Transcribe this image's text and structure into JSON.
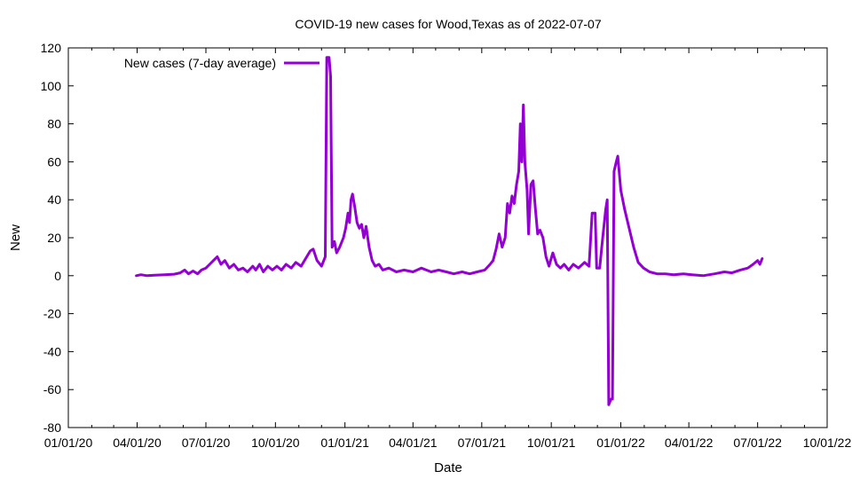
{
  "chart_data": {
    "type": "line",
    "title": "COVID-19 new cases for Wood,Texas as of 2022-07-07",
    "xlabel": "Date",
    "ylabel": "New",
    "xlim": [
      "2020-01-01",
      "2022-10-01"
    ],
    "ylim": [
      -80,
      120
    ],
    "x_ticks": [
      {
        "date": "2020-01-01",
        "label": "01/01/20"
      },
      {
        "date": "2020-04-01",
        "label": "04/01/20"
      },
      {
        "date": "2020-07-01",
        "label": "07/01/20"
      },
      {
        "date": "2020-10-01",
        "label": "10/01/20"
      },
      {
        "date": "2021-01-01",
        "label": "01/01/21"
      },
      {
        "date": "2021-04-01",
        "label": "04/01/21"
      },
      {
        "date": "2021-07-01",
        "label": "07/01/21"
      },
      {
        "date": "2021-10-01",
        "label": "10/01/21"
      },
      {
        "date": "2022-01-01",
        "label": "01/01/22"
      },
      {
        "date": "2022-04-01",
        "label": "04/01/22"
      },
      {
        "date": "2022-07-01",
        "label": "07/01/22"
      },
      {
        "date": "2022-10-01",
        "label": "10/01/22"
      }
    ],
    "y_ticks": [
      -80,
      -60,
      -40,
      -20,
      0,
      20,
      40,
      60,
      80,
      100,
      120
    ],
    "legend_position": "top-left",
    "grid": false,
    "series": [
      {
        "name": "New cases (7-day average)",
        "color": "#9400d3",
        "points": [
          [
            "2020-03-31",
            0
          ],
          [
            "2020-04-06",
            0.5
          ],
          [
            "2020-04-14",
            0
          ],
          [
            "2020-04-24",
            0.3
          ],
          [
            "2020-05-07",
            0.5
          ],
          [
            "2020-05-20",
            0.8
          ],
          [
            "2020-05-28",
            1.5
          ],
          [
            "2020-06-03",
            3
          ],
          [
            "2020-06-08",
            1
          ],
          [
            "2020-06-14",
            2.5
          ],
          [
            "2020-06-20",
            1
          ],
          [
            "2020-06-25",
            3
          ],
          [
            "2020-07-01",
            4
          ],
          [
            "2020-07-06",
            6
          ],
          [
            "2020-07-11",
            8
          ],
          [
            "2020-07-16",
            10
          ],
          [
            "2020-07-21",
            6
          ],
          [
            "2020-07-26",
            8
          ],
          [
            "2020-08-01",
            4
          ],
          [
            "2020-08-07",
            6
          ],
          [
            "2020-08-13",
            3
          ],
          [
            "2020-08-19",
            4
          ],
          [
            "2020-08-25",
            2
          ],
          [
            "2020-09-01",
            5
          ],
          [
            "2020-09-05",
            3
          ],
          [
            "2020-09-10",
            6
          ],
          [
            "2020-09-15",
            2
          ],
          [
            "2020-09-21",
            5
          ],
          [
            "2020-09-27",
            3
          ],
          [
            "2020-10-03",
            5
          ],
          [
            "2020-10-09",
            3
          ],
          [
            "2020-10-15",
            6
          ],
          [
            "2020-10-22",
            4
          ],
          [
            "2020-10-28",
            7
          ],
          [
            "2020-11-04",
            5
          ],
          [
            "2020-11-10",
            9
          ],
          [
            "2020-11-16",
            13
          ],
          [
            "2020-11-20",
            14
          ],
          [
            "2020-11-25",
            8
          ],
          [
            "2020-12-01",
            5
          ],
          [
            "2020-12-06",
            10
          ],
          [
            "2020-12-08",
            115
          ],
          [
            "2020-12-11",
            115
          ],
          [
            "2020-12-13",
            105
          ],
          [
            "2020-12-15",
            15
          ],
          [
            "2020-12-18",
            18
          ],
          [
            "2020-12-21",
            12
          ],
          [
            "2020-12-25",
            15
          ],
          [
            "2020-12-30",
            20
          ],
          [
            "2021-01-02",
            25
          ],
          [
            "2021-01-05",
            33
          ],
          [
            "2021-01-07",
            28
          ],
          [
            "2021-01-09",
            40
          ],
          [
            "2021-01-11",
            43
          ],
          [
            "2021-01-14",
            36
          ],
          [
            "2021-01-17",
            28
          ],
          [
            "2021-01-20",
            25
          ],
          [
            "2021-01-23",
            27
          ],
          [
            "2021-01-26",
            20
          ],
          [
            "2021-01-29",
            26
          ],
          [
            "2021-02-02",
            15
          ],
          [
            "2021-02-06",
            8
          ],
          [
            "2021-02-10",
            5
          ],
          [
            "2021-02-15",
            6
          ],
          [
            "2021-02-20",
            3
          ],
          [
            "2021-02-28",
            4
          ],
          [
            "2021-03-10",
            2
          ],
          [
            "2021-03-20",
            3
          ],
          [
            "2021-04-01",
            2
          ],
          [
            "2021-04-12",
            4
          ],
          [
            "2021-04-25",
            2
          ],
          [
            "2021-05-05",
            3
          ],
          [
            "2021-05-15",
            2
          ],
          [
            "2021-05-25",
            1
          ],
          [
            "2021-06-05",
            2
          ],
          [
            "2021-06-15",
            1
          ],
          [
            "2021-06-25",
            2
          ],
          [
            "2021-07-05",
            3
          ],
          [
            "2021-07-12",
            6
          ],
          [
            "2021-07-16",
            8
          ],
          [
            "2021-07-20",
            14
          ],
          [
            "2021-07-24",
            22
          ],
          [
            "2021-07-28",
            15
          ],
          [
            "2021-08-01",
            20
          ],
          [
            "2021-08-04",
            38
          ],
          [
            "2021-08-07",
            33
          ],
          [
            "2021-08-10",
            42
          ],
          [
            "2021-08-13",
            38
          ],
          [
            "2021-08-16",
            48
          ],
          [
            "2021-08-19",
            55
          ],
          [
            "2021-08-21",
            80
          ],
          [
            "2021-08-23",
            60
          ],
          [
            "2021-08-25",
            90
          ],
          [
            "2021-08-27",
            60
          ],
          [
            "2021-08-30",
            45
          ],
          [
            "2021-09-01",
            22
          ],
          [
            "2021-09-04",
            48
          ],
          [
            "2021-09-07",
            50
          ],
          [
            "2021-09-10",
            35
          ],
          [
            "2021-09-13",
            22
          ],
          [
            "2021-09-16",
            24
          ],
          [
            "2021-09-20",
            20
          ],
          [
            "2021-09-24",
            10
          ],
          [
            "2021-09-28",
            5
          ],
          [
            "2021-10-03",
            12
          ],
          [
            "2021-10-08",
            6
          ],
          [
            "2021-10-13",
            4
          ],
          [
            "2021-10-18",
            6
          ],
          [
            "2021-10-24",
            3
          ],
          [
            "2021-10-30",
            6
          ],
          [
            "2021-11-06",
            4
          ],
          [
            "2021-11-14",
            7
          ],
          [
            "2021-11-20",
            5
          ],
          [
            "2021-11-24",
            33
          ],
          [
            "2021-11-28",
            33
          ],
          [
            "2021-11-30",
            4
          ],
          [
            "2021-12-04",
            4
          ],
          [
            "2021-12-08",
            20
          ],
          [
            "2021-12-12",
            35
          ],
          [
            "2021-12-14",
            40
          ],
          [
            "2021-12-16",
            -68
          ],
          [
            "2021-12-19",
            -65
          ],
          [
            "2021-12-21",
            -65
          ],
          [
            "2021-12-23",
            55
          ],
          [
            "2021-12-26",
            60
          ],
          [
            "2021-12-28",
            63
          ],
          [
            "2022-01-01",
            45
          ],
          [
            "2022-01-06",
            35
          ],
          [
            "2022-01-12",
            25
          ],
          [
            "2022-01-18",
            15
          ],
          [
            "2022-01-24",
            7
          ],
          [
            "2022-01-31",
            4
          ],
          [
            "2022-02-08",
            2
          ],
          [
            "2022-02-18",
            1
          ],
          [
            "2022-03-01",
            1
          ],
          [
            "2022-03-12",
            0.5
          ],
          [
            "2022-03-25",
            1
          ],
          [
            "2022-04-05",
            0.5
          ],
          [
            "2022-04-20",
            0
          ],
          [
            "2022-05-05",
            1
          ],
          [
            "2022-05-18",
            2
          ],
          [
            "2022-05-28",
            1.5
          ],
          [
            "2022-06-08",
            3
          ],
          [
            "2022-06-18",
            4
          ],
          [
            "2022-06-25",
            6
          ],
          [
            "2022-07-01",
            8
          ],
          [
            "2022-07-04",
            6
          ],
          [
            "2022-07-07",
            9
          ]
        ]
      }
    ]
  }
}
